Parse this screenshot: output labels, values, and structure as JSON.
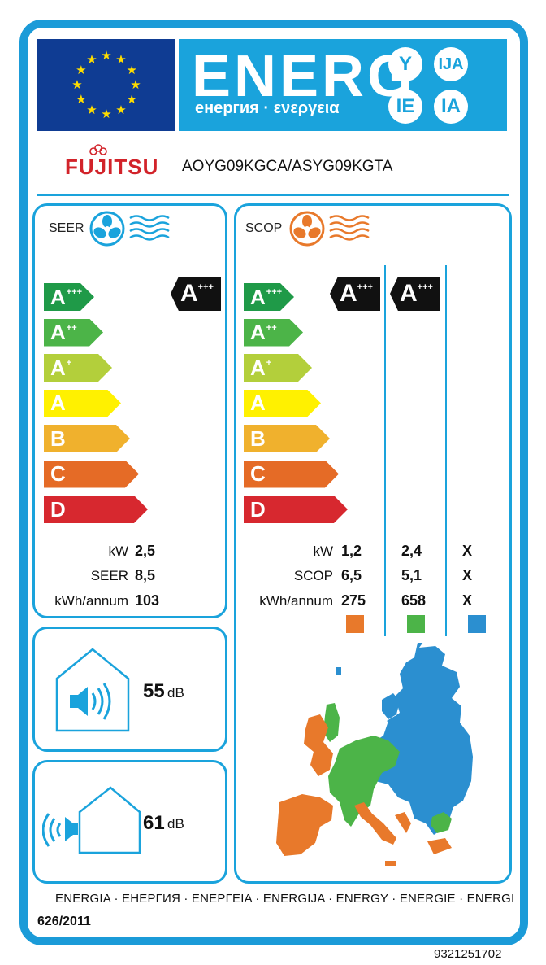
{
  "header": {
    "energ": "ENERG",
    "energ_sub": "енергия · ενεργεια",
    "suffixes": [
      "Y",
      "IJA",
      "IE",
      "IA"
    ]
  },
  "brand": "FUJITSU",
  "model": "AOYG09KGCA/ASYG09KGTA",
  "cooling": {
    "title": "SEER",
    "rating_letter": "A",
    "rating_plus": "+++",
    "rows": [
      {
        "label": "kW",
        "value": "2,5"
      },
      {
        "label": "SEER",
        "value": "8,5"
      },
      {
        "label": "kWh/annum",
        "value": "103"
      }
    ]
  },
  "heating": {
    "title": "SCOP",
    "ratings": [
      {
        "letter": "A",
        "plus": "+++"
      },
      {
        "letter": "A",
        "plus": "+++"
      }
    ],
    "rows": [
      {
        "label": "kW",
        "values": [
          "1,2",
          "2,4",
          "X"
        ]
      },
      {
        "label": "SCOP",
        "values": [
          "6,5",
          "5,1",
          "X"
        ]
      },
      {
        "label": "kWh/annum",
        "values": [
          "275",
          "658",
          "X"
        ]
      }
    ],
    "zone_colors": [
      "#e8792b",
      "#4cb448",
      "#2b8fd0"
    ]
  },
  "scale": [
    {
      "letter": "A",
      "plus": "+++",
      "color": "#1f9a48"
    },
    {
      "letter": "A",
      "plus": "++",
      "color": "#4cb448"
    },
    {
      "letter": "A",
      "plus": "+",
      "color": "#b3cf3b"
    },
    {
      "letter": "A",
      "plus": "",
      "color": "#fff100"
    },
    {
      "letter": "B",
      "plus": "",
      "color": "#f0b12d"
    },
    {
      "letter": "C",
      "plus": "",
      "color": "#e56b26"
    },
    {
      "letter": "D",
      "plus": "",
      "color": "#d7282f"
    }
  ],
  "noise_indoor": {
    "value": "55",
    "unit": "dB"
  },
  "noise_outdoor": {
    "value": "61",
    "unit": "dB"
  },
  "footer": {
    "languages": "ENERGIA · ЕНЕРГИЯ · ΕΝΕΡΓΕΙΑ · ENERGIJA · ENERGY · ENERGIE · ENERGI",
    "regulation": "626/2011",
    "code": "9321251702"
  },
  "colors": {
    "frame": "#1aa3dc",
    "flag": "#0f3c93",
    "star": "#ffdd00",
    "brand": "#d2232a"
  }
}
